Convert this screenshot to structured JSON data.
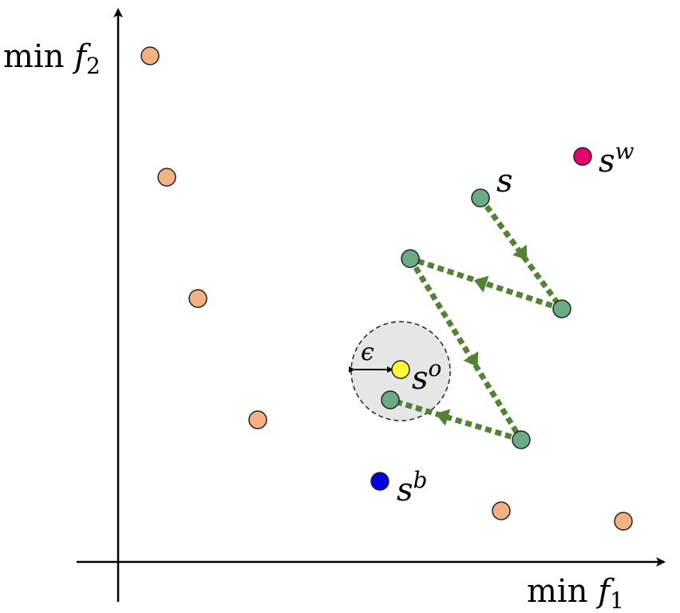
{
  "axes": {
    "x_label": {
      "prefix": "min ",
      "var": "f",
      "sub": "1"
    },
    "y_label": {
      "prefix": "min ",
      "var": "f",
      "sub": "2"
    }
  },
  "labels": {
    "s": "s",
    "sw_base": "s",
    "sw_sup": "w",
    "so_base": "s",
    "so_sup": "o",
    "sb_base": "s",
    "sb_sup": "b",
    "epsilon": "ϵ"
  },
  "colors": {
    "pareto_point": "#f4b183",
    "trajectory_point": "#6aab84",
    "trajectory_arrow": "#548235",
    "worst_point": "#e6006e",
    "best_point": "#0000e0",
    "optimal_point": "#ffff33",
    "epsilon_region": "#e6e6e6"
  }
}
